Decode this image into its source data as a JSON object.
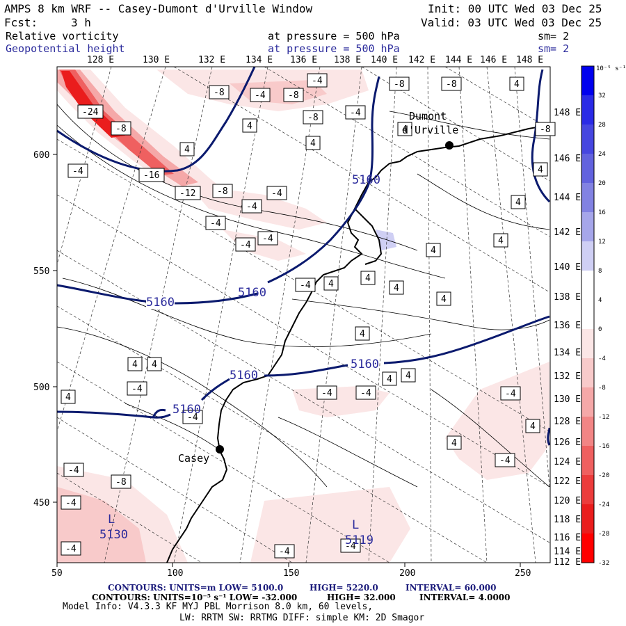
{
  "header": {
    "title": "AMPS 8 km WRF -- Casey-Dumont d'Urville Window",
    "init": "Init: 00 UTC Wed 03 Dec 25",
    "fcst_label": "Fcst:",
    "fcst_value": "3 h",
    "valid": "Valid: 03 UTC Wed 03 Dec 25",
    "field1": "Relative vorticity",
    "field1_pressure": "at pressure =  500 hPa",
    "field1_sm": "sm= 2",
    "field2": "Geopotential height",
    "field2_pressure": "at pressure =  500 hPa",
    "field2_sm": "sm= 2"
  },
  "lon_labels": [
    "128 E",
    "130 E",
    "132 E",
    "134 E",
    "136 E",
    "138 E",
    "140 E",
    "142 E",
    "144 E",
    "146 E",
    "148 E"
  ],
  "right_axis_labels": [
    "148 E",
    "146 E",
    "144 E",
    "142 E",
    "140 E",
    "138 E",
    "136 E",
    "134 E",
    "132 E",
    "130 E",
    "128 E",
    "126 E",
    "124 E",
    "122 E",
    "120 E",
    "118 E",
    "116 E",
    "114 E",
    "112 E"
  ],
  "x_ticks": [
    "50",
    "100",
    "150",
    "200",
    "250"
  ],
  "y_ticks": [
    "600",
    "550",
    "500",
    "450"
  ],
  "colorbar": {
    "unit": "10⁻⁵ s⁻¹",
    "labels": [
      "32",
      "28",
      "24",
      "20",
      "16",
      "12",
      "8",
      "4",
      "0",
      "-4",
      "-8",
      "-12",
      "-16",
      "-20",
      "-24",
      "-28",
      "-32"
    ],
    "colors": [
      "#0000ee",
      "#2a2ae6",
      "#4646e0",
      "#6262de",
      "#8282e2",
      "#a6a6ea",
      "#cfcff4",
      "#ffffff",
      "#ffffff",
      "#fbe6e6",
      "#f8caca",
      "#f5a8a8",
      "#f28585",
      "#ef6060",
      "#ec3c3c",
      "#ea1d1d",
      "#ff0000"
    ]
  },
  "stations": [
    {
      "name_line1": "Dumont",
      "name_line2": "d'Urville"
    },
    {
      "name_line1": "Casey",
      "name_line2": ""
    }
  ],
  "height_labels": [
    "5160",
    "5160",
    "5160",
    "5160",
    "5160",
    "5160"
  ],
  "lows": [
    {
      "letter": "L",
      "value": "5130"
    },
    {
      "letter": "L",
      "value": "5119"
    }
  ],
  "vort_boxes": [
    "-4",
    "-8",
    "-8",
    "-8",
    "-4",
    "-8",
    "4",
    "-8",
    "-24",
    "-4",
    "4",
    "-8",
    "4",
    "-8",
    "4",
    "4",
    "-4",
    "4",
    "-16",
    "-12",
    "-8",
    "-4",
    "-4",
    "-4",
    "-4",
    "4",
    "-4",
    "4",
    "4",
    "-4",
    "4",
    "4",
    "4",
    "4",
    "4",
    "4",
    "-4",
    "-4",
    "4",
    "4",
    "-4",
    "4",
    "-4",
    "4",
    "-4",
    "4",
    "-4",
    "-4",
    "-8",
    "-4",
    "4",
    "-4",
    "-4",
    "-4",
    "4",
    "-4",
    "-4"
  ],
  "footer": {
    "line1_a": "CONTOURS:  UNITS=m  LOW=  5100.0",
    "line1_b": "HIGH=  5220.0",
    "line1_c": "INTERVAL=   60.000",
    "line2_a": "CONTOURS:  UNITS=10⁻⁵ s⁻¹  LOW= -32.000",
    "line2_b": "HIGH=  32.000",
    "line2_c": "INTERVAL=   4.0000",
    "line3": "Model Info: V4.3.3    KF     MYJ PBL  Morrison          8.0 km,  60 levels,",
    "line4": "LW: RRTM SW: RRTMG   DIFF: simple KM: 2D Smagor"
  }
}
